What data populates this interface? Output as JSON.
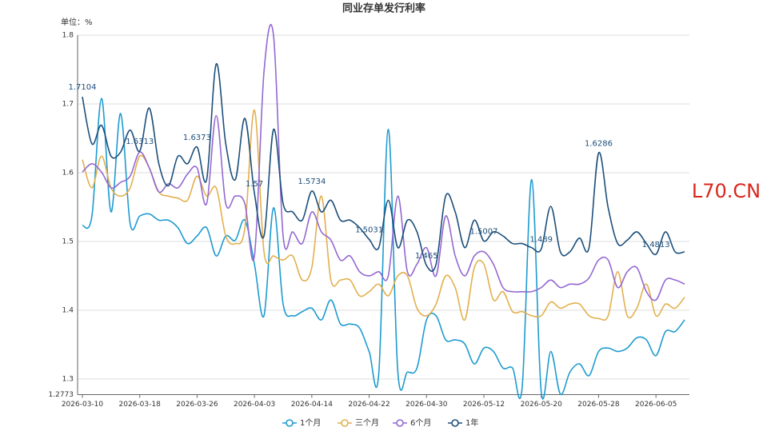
{
  "chart_data": {
    "type": "line",
    "title": "同业存单发行利率",
    "y_axis_name": "单位：%",
    "watermark": "L70.CN",
    "categories": [
      "2026-03-10",
      null,
      null,
      null,
      null,
      null,
      "2026-03-18",
      null,
      null,
      null,
      null,
      null,
      "2026-03-26",
      null,
      null,
      null,
      null,
      null,
      "2026-04-03",
      null,
      null,
      null,
      null,
      null,
      "2026-04-14",
      null,
      null,
      null,
      null,
      null,
      "2026-04-22",
      null,
      null,
      null,
      null,
      null,
      "2026-04-30",
      null,
      null,
      null,
      null,
      null,
      "2026-05-12",
      null,
      null,
      null,
      null,
      null,
      "2026-05-20",
      null,
      null,
      null,
      null,
      null,
      "2026-05-28",
      null,
      null,
      null,
      null,
      null,
      "2026-06-05",
      null,
      null,
      null
    ],
    "ylim": [
      1.2773,
      1.8
    ],
    "yticks": [
      1.2773,
      1.3,
      1.4,
      1.5,
      1.6,
      1.7,
      1.8
    ],
    "grid": true,
    "smooth": true,
    "legend": "bottom",
    "series": [
      {
        "name": "1个月",
        "color": "#1e9bd0",
        "values": [
          1.523,
          1.537,
          1.708,
          1.543,
          1.686,
          1.526,
          1.537,
          1.54,
          1.531,
          1.531,
          1.52,
          1.497,
          1.508,
          1.52,
          1.479,
          1.508,
          1.502,
          1.531,
          1.467,
          1.392,
          1.549,
          1.409,
          1.392,
          1.398,
          1.403,
          1.386,
          1.415,
          1.38,
          1.38,
          1.374,
          1.34,
          1.307,
          1.663,
          1.31,
          1.31,
          1.316,
          1.386,
          1.392,
          1.357,
          1.357,
          1.351,
          1.322,
          1.345,
          1.34,
          1.316,
          1.316,
          1.287,
          1.59,
          1.281,
          1.34,
          1.278,
          1.31,
          1.322,
          1.305,
          1.34,
          1.345,
          1.34,
          1.345,
          1.36,
          1.357,
          1.334,
          1.369,
          1.369,
          1.386
        ]
      },
      {
        "name": "三个月",
        "color": "#e2b04e",
        "values": [
          1.619,
          1.578,
          1.624,
          1.578,
          1.566,
          1.578,
          1.624,
          1.607,
          1.572,
          1.566,
          1.563,
          1.56,
          1.595,
          1.566,
          1.578,
          1.508,
          1.497,
          1.52,
          1.691,
          1.485,
          1.479,
          1.473,
          1.479,
          1.444,
          1.462,
          1.566,
          1.444,
          1.444,
          1.444,
          1.421,
          1.427,
          1.438,
          1.421,
          1.45,
          1.45,
          1.403,
          1.392,
          1.409,
          1.45,
          1.433,
          1.386,
          1.462,
          1.467,
          1.415,
          1.427,
          1.398,
          1.398,
          1.392,
          1.392,
          1.412,
          1.403,
          1.409,
          1.409,
          1.392,
          1.388,
          1.392,
          1.456,
          1.392,
          1.403,
          1.438,
          1.392,
          1.409,
          1.403,
          1.419
        ]
      },
      {
        "name": "6个月",
        "color": "#9469d2",
        "values": [
          1.601,
          1.613,
          1.601,
          1.578,
          1.586,
          1.595,
          1.63,
          1.607,
          1.572,
          1.584,
          1.578,
          1.598,
          1.607,
          1.555,
          1.683,
          1.555,
          1.566,
          1.555,
          1.479,
          1.747,
          1.799,
          1.508,
          1.514,
          1.497,
          1.543,
          1.514,
          1.502,
          1.473,
          1.479,
          1.456,
          1.45,
          1.456,
          1.45,
          1.566,
          1.456,
          1.467,
          1.491,
          1.45,
          1.537,
          1.479,
          1.45,
          1.479,
          1.485,
          1.467,
          1.433,
          1.427,
          1.427,
          1.427,
          1.433,
          1.444,
          1.433,
          1.438,
          1.438,
          1.447,
          1.473,
          1.473,
          1.433,
          1.456,
          1.462,
          1.427,
          1.415,
          1.444,
          1.444,
          1.438
        ]
      },
      {
        "name": "1年",
        "color": "#1d4f7b",
        "data_label_interval": 6,
        "values": [
          1.7104,
          1.642,
          1.669,
          1.624,
          1.63,
          1.662,
          1.6313,
          1.694,
          1.613,
          1.581,
          1.624,
          1.613,
          1.6373,
          1.59,
          1.758,
          1.642,
          1.59,
          1.679,
          1.57,
          1.508,
          1.663,
          1.555,
          1.543,
          1.531,
          1.5734,
          1.543,
          1.56,
          1.531,
          1.531,
          1.52,
          1.5031,
          1.491,
          1.56,
          1.491,
          1.531,
          1.514,
          1.465,
          1.467,
          1.566,
          1.543,
          1.491,
          1.531,
          1.5007,
          1.514,
          1.508,
          1.497,
          1.497,
          1.491,
          1.489,
          1.551,
          1.485,
          1.485,
          1.505,
          1.491,
          1.6286,
          1.549,
          1.497,
          1.502,
          1.514,
          1.497,
          1.4813,
          1.514,
          1.485,
          1.485
        ]
      }
    ]
  }
}
